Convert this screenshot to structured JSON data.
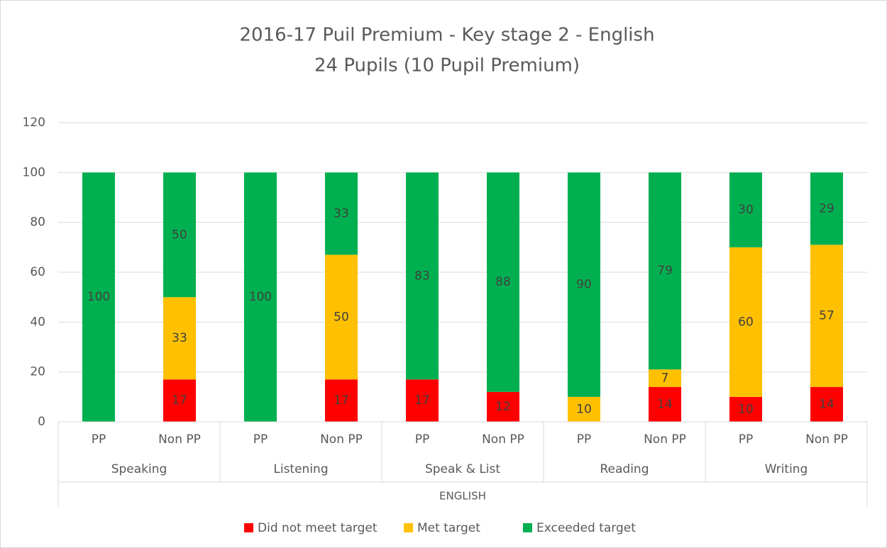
{
  "chart_data": {
    "type": "stacked_bar",
    "title": "2016-17 Puil Premium - Key stage 2 - English",
    "subtitle": "24 Pupils (10 Pupil Premium)",
    "categories": [
      "PP",
      "Non PP",
      "PP",
      "Non PP",
      "PP",
      "Non PP",
      "PP",
      "Non PP",
      "PP",
      "Non PP"
    ],
    "groups": [
      "Speaking",
      "Listening",
      "Speak & List",
      "Reading",
      "Writing"
    ],
    "supergroup": "ENGLISH",
    "series": [
      {
        "name": "Did not meet target",
        "color": "#ff0000",
        "values": [
          0,
          17,
          0,
          17,
          17,
          12,
          0,
          14,
          10,
          14
        ]
      },
      {
        "name": "Met target",
        "color": "#ffc000",
        "values": [
          0,
          33,
          0,
          50,
          0,
          0,
          10,
          7,
          60,
          57
        ]
      },
      {
        "name": "Exceeded target",
        "color": "#00b050",
        "values": [
          100,
          50,
          100,
          33,
          83,
          88,
          90,
          79,
          30,
          29
        ]
      }
    ],
    "ylim": [
      0,
      120
    ],
    "yticks": [
      0,
      20,
      40,
      60,
      80,
      100,
      120
    ],
    "grid": true,
    "legend": "bottom"
  }
}
